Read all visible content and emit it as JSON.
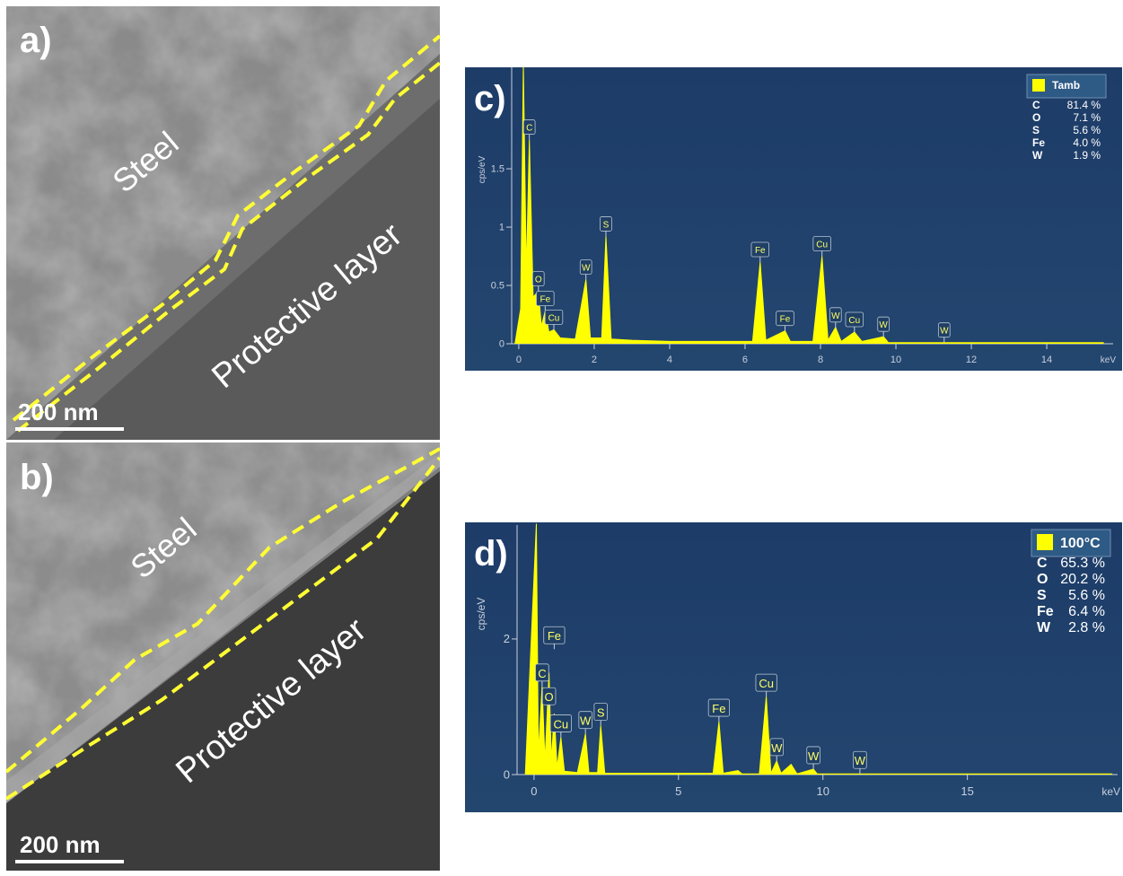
{
  "panels": [
    {
      "label": "a)",
      "steel": "Steel",
      "layer": "Protective layer",
      "scale": "200 nm"
    },
    {
      "label": "b)",
      "steel": "Steel",
      "layer": "Protective layer",
      "scale": "200 nm"
    }
  ],
  "chart_data": [
    {
      "type": "area",
      "label": "c)",
      "x_label": "keV",
      "y_label": "cps/eV",
      "xlim": [
        -0.26,
        15.76
      ],
      "ylim": [
        0,
        2.37
      ],
      "xticks": [
        0,
        2,
        4,
        6,
        8,
        10,
        12,
        14
      ],
      "yticks": [
        0,
        0.5,
        1,
        1.5
      ],
      "legend": "top-right",
      "x": [
        -0.1,
        0.05,
        0.12,
        0.2,
        0.28,
        0.38,
        0.52,
        0.6,
        0.7,
        0.8,
        0.93,
        1.1,
        1.5,
        1.78,
        1.9,
        2.2,
        2.31,
        2.45,
        3,
        4,
        6.2,
        6.4,
        6.55,
        7.06,
        7.2,
        7.8,
        8.04,
        8.2,
        8.4,
        8.55,
        8.9,
        9.1,
        9.67,
        9.8,
        11.3,
        15.5
      ],
      "series": [
        {
          "name": "Tamb",
          "color": "#ffff00",
          "values": [
            0,
            0.3,
            2.4,
            0.6,
            1.75,
            0.4,
            0.45,
            0.15,
            0.28,
            0.1,
            0.12,
            0.05,
            0.04,
            0.55,
            0.05,
            0.05,
            0.92,
            0.04,
            0.03,
            0.02,
            0.02,
            0.7,
            0.03,
            0.11,
            0.02,
            0.02,
            0.75,
            0.03,
            0.14,
            0.02,
            0.1,
            0.02,
            0.06,
            0.01,
            0.01,
            0.01
          ]
        }
      ],
      "composition": [
        [
          "C",
          "81.4 %"
        ],
        [
          "O",
          "7.1 %"
        ],
        [
          "S",
          "5.6 %"
        ],
        [
          "Fe",
          "4.0 %"
        ],
        [
          "W",
          "1.9 %"
        ]
      ],
      "annotations": [
        {
          "text": "C",
          "x": 0.28,
          "y": 1.75
        },
        {
          "text": "O",
          "x": 0.52,
          "y": 0.45
        },
        {
          "text": "Fe",
          "x": 0.7,
          "y": 0.28
        },
        {
          "text": "Cu",
          "x": 0.93,
          "y": 0.12
        },
        {
          "text": "W",
          "x": 1.78,
          "y": 0.55
        },
        {
          "text": "S",
          "x": 2.31,
          "y": 0.92
        },
        {
          "text": "Fe",
          "x": 6.4,
          "y": 0.7
        },
        {
          "text": "Fe",
          "x": 7.06,
          "y": 0.11
        },
        {
          "text": "Cu",
          "x": 8.04,
          "y": 0.75
        },
        {
          "text": "W",
          "x": 8.4,
          "y": 0.14
        },
        {
          "text": "Cu",
          "x": 8.9,
          "y": 0.1
        },
        {
          "text": "W",
          "x": 9.67,
          "y": 0.06
        },
        {
          "text": "W",
          "x": 11.28,
          "y": 0.01
        }
      ]
    },
    {
      "type": "area",
      "label": "d)",
      "x_label": "keV",
      "y_label": "cps/eV",
      "xlim": [
        -0.68,
        20.2
      ],
      "ylim": [
        0,
        3.68
      ],
      "xticks": [
        0,
        5,
        10,
        15
      ],
      "yticks": [
        0,
        2
      ],
      "legend": "top-right",
      "x": [
        -0.3,
        0.08,
        0.15,
        0.28,
        0.38,
        0.52,
        0.6,
        0.7,
        0.8,
        0.93,
        1.05,
        1.5,
        1.78,
        1.9,
        2.2,
        2.31,
        2.45,
        4,
        6.2,
        6.4,
        6.55,
        7.06,
        7.2,
        7.8,
        8.04,
        8.2,
        8.4,
        8.55,
        8.9,
        9.1,
        9.67,
        9.8,
        11.3,
        20
      ],
      "series": [
        {
          "name": "100°C",
          "color": "#ffff00",
          "values": [
            0,
            3.7,
            0.3,
            1.3,
            0.2,
            1.5,
            0.2,
            0.9,
            0.1,
            0.55,
            0.05,
            0.03,
            0.6,
            0.03,
            0.03,
            0.72,
            0.02,
            0.02,
            0.02,
            0.78,
            0.02,
            0.06,
            0.01,
            0.01,
            1.15,
            0.02,
            0.2,
            0.02,
            0.15,
            0.01,
            0.08,
            0.01,
            0.01,
            0.01
          ]
        }
      ],
      "composition": [
        [
          "C",
          "65.3 %"
        ],
        [
          "O",
          "20.2 %"
        ],
        [
          "S",
          "5.6 %"
        ],
        [
          "Fe",
          "6.4 %"
        ],
        [
          "W",
          "2.8 %"
        ]
      ],
      "annotations": [
        {
          "text": "C",
          "x": 0.28,
          "y": 1.3
        },
        {
          "text": "Fe",
          "x": 0.7,
          "y": 1.85
        },
        {
          "text": "O",
          "x": 0.52,
          "y": 0.95
        },
        {
          "text": "Cu",
          "x": 0.93,
          "y": 0.55
        },
        {
          "text": "W",
          "x": 1.78,
          "y": 0.6
        },
        {
          "text": "S",
          "x": 2.31,
          "y": 0.72
        },
        {
          "text": "Fe",
          "x": 6.4,
          "y": 0.78
        },
        {
          "text": "Cu",
          "x": 8.04,
          "y": 1.15
        },
        {
          "text": "W",
          "x": 8.4,
          "y": 0.2
        },
        {
          "text": "W",
          "x": 9.67,
          "y": 0.08
        },
        {
          "text": "W",
          "x": 11.28,
          "y": 0.01
        }
      ]
    }
  ]
}
